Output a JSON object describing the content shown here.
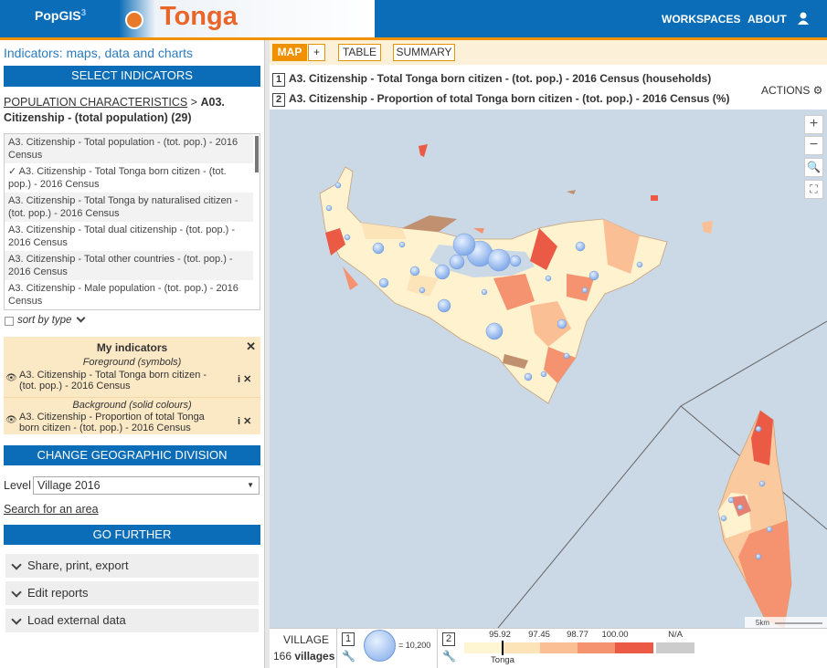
{
  "header": {
    "logo": "PopGIS",
    "logo_version": "3",
    "country": "Tonga",
    "nav": [
      "WORKSPACES",
      "ABOUT"
    ]
  },
  "sidebar": {
    "heading": "Indicators: maps, data and charts",
    "select_button": "SELECT INDICATORS",
    "breadcrumb": {
      "link": "POPULATION CHARACTERISTICS",
      "separator": ">",
      "current": "A03. Citizenship - (total population) (29)"
    },
    "indicators": [
      "A3. Citizenship - Total population - (tot. pop.) - 2016 Census",
      "✓ A3. Citizenship - Total Tonga born citizen - (tot. pop.) - 2016 Census",
      "A3. Citizenship - Total Tonga by naturalised citizen - (tot. pop.) - 2016 Census",
      "A3. Citizenship - Total dual citizenship - (tot. pop.) - 2016 Census",
      "A3. Citizenship - Total other countries - (tot. pop.) - 2016 Census",
      "A3. Citizenship - Male population - (tot. pop.) - 2016 Census"
    ],
    "sort_label": "sort by type",
    "my_indicators": {
      "title": "My indicators",
      "foreground_label": "Foreground (symbols)",
      "foreground": "A3. Citizenship - Total Tonga born citizen - (tot. pop.) - 2016 Census",
      "background_label": "Background (solid colours)",
      "background": "A3. Citizenship - Proportion of total Tonga born citizen - (tot. pop.) - 2016 Census"
    },
    "change_button": "CHANGE GEOGRAPHIC DIVISION",
    "level_label": "Level",
    "level_value": "Village 2016",
    "search_link": "Search for an area",
    "go_further": "GO FURTHER",
    "accordions": [
      "Share, print, export",
      "Edit reports",
      "Load external data"
    ]
  },
  "map": {
    "tabs": [
      "MAP",
      "+",
      "TABLE",
      "SUMMARY"
    ],
    "layers": [
      {
        "number": "1",
        "title": "A3. Citizenship - Total Tonga born citizen - (tot. pop.) - 2016 Census (households)"
      },
      {
        "number": "2",
        "title": "A3. Citizenship - Proportion of total Tonga born citizen - (tot. pop.) - 2016 Census (%)"
      }
    ],
    "actions": "ACTIONS",
    "scale": "5km",
    "legend": {
      "division": "VILLAGE",
      "count": "166",
      "count_unit": "villages",
      "symbol_layer": "1",
      "symbol_value": "= 10,200",
      "color_layer": "2",
      "breaks": [
        "95.92",
        "97.45",
        "98.77",
        "100.00"
      ],
      "na": "N/A",
      "marker_label": "Tonga"
    }
  }
}
